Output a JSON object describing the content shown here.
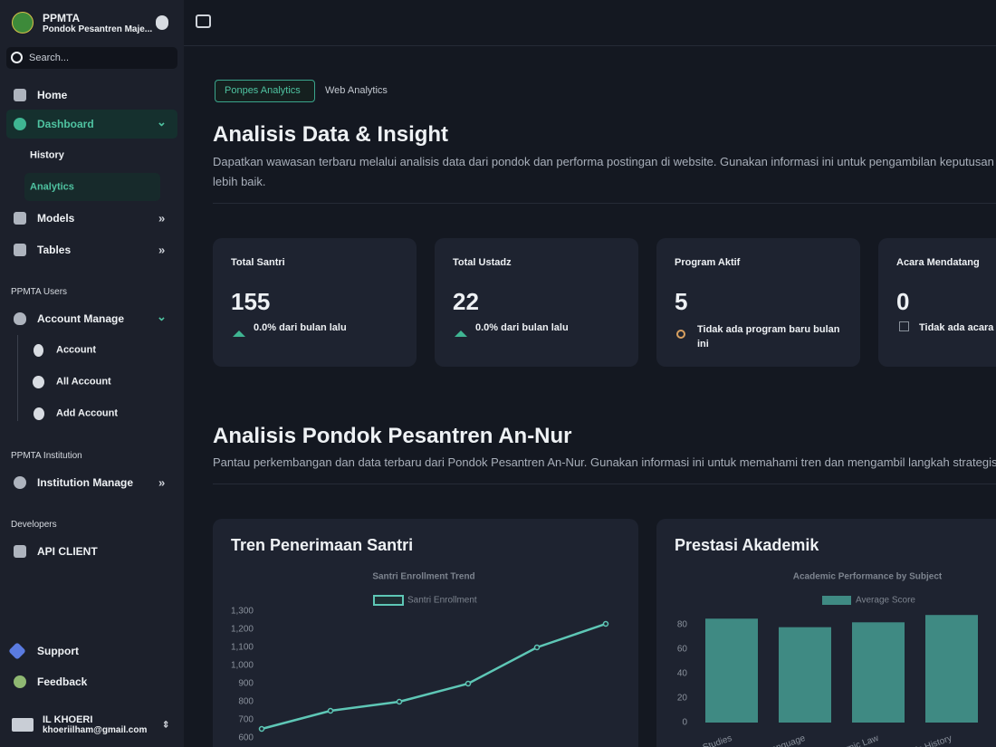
{
  "sidebar": {
    "brand": {
      "title": "PPMTA",
      "subtitle": "Pondok Pesantren Maje..."
    },
    "search": "Search...",
    "nav": [
      {
        "label": "Home"
      },
      {
        "label": "Dashboard",
        "children": [
          "History",
          "Analytics"
        ]
      },
      {
        "label": "Models"
      },
      {
        "label": "Tables"
      }
    ],
    "sections": [
      {
        "title": "PPMTA Users",
        "items": [
          {
            "label": "Account Manage",
            "children": [
              "Account",
              "All Account",
              "Add Account"
            ]
          }
        ]
      },
      {
        "title": "PPMTA Institution",
        "items": [
          {
            "label": "Institution Manage"
          }
        ]
      },
      {
        "title": "Developers",
        "items": [
          {
            "label": "API CLIENT"
          }
        ]
      }
    ],
    "footer_links": [
      "Support",
      "Feedback"
    ],
    "user": {
      "name": "IL KHOERI",
      "email": "khoeriilham@gmail.com"
    }
  },
  "tabs": [
    "Ponpes Analytics",
    "Web Analytics"
  ],
  "overview": {
    "title": "Analisis Data & Insight",
    "description": "Dapatkan wawasan terbaru melalui analisis data dari pondok dan performa postingan di website. Gunakan informasi ini untuk pengambilan keputusan yang lebih baik."
  },
  "stats": [
    {
      "label": "Total Santri",
      "value": 155,
      "note": "0.0% dari bulan lalu"
    },
    {
      "label": "Total Ustadz",
      "value": 22,
      "note": "0.0% dari bulan lalu"
    },
    {
      "label": "Program Aktif",
      "value": 5,
      "note": "Tidak ada program baru bulan ini"
    },
    {
      "label": "Acara Mendatang",
      "value": 0,
      "note": "Tidak ada acara"
    }
  ],
  "section": {
    "title": "Analisis Pondok Pesantren An-Nur",
    "description": "Pantau perkembangan dan data terbaru dari Pondok Pesantren An-Nur. Gunakan informasi ini untuk memahami tren dan mengambil langkah strategis."
  },
  "cards": [
    "Tren Penerimaan Santri",
    "Prestasi Akademik"
  ],
  "chart_data": [
    {
      "type": "line",
      "title": "Santri Enrollment Trend",
      "categories": [
        null,
        null,
        null,
        null,
        null,
        null
      ],
      "series": [
        {
          "name": "Santri Enrollment",
          "color": "#5ec7b6",
          "values": [
            650,
            750,
            800,
            900,
            1100,
            1230
          ]
        }
      ],
      "ylim": [
        600,
        1300
      ],
      "yticks": [
        600,
        700,
        800,
        900,
        {
          "value": 1000,
          "label": "1,000"
        },
        {
          "value": 1100,
          "label": "1,100"
        },
        {
          "value": 1200,
          "label": "1,200"
        },
        {
          "value": 1300,
          "label": "1,300"
        }
      ]
    },
    {
      "type": "bar",
      "title": "Academic Performance by Subject",
      "categories": [
        "Quran Studies",
        "Arabic Language",
        "Islamic Law",
        "Islamic History"
      ],
      "series": [
        {
          "name": "Average Score",
          "color": "#3f8a83",
          "values": [
            85,
            78,
            82,
            88
          ]
        }
      ],
      "ylim": [
        0,
        90
      ],
      "yticks": [
        0,
        20,
        40,
        60,
        80
      ]
    }
  ]
}
